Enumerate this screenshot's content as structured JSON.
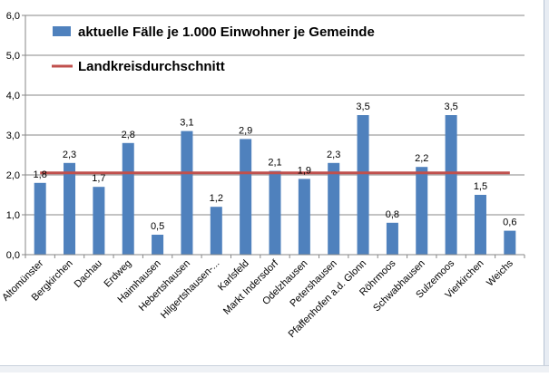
{
  "chart_data": {
    "type": "bar",
    "categories": [
      "Altomünster",
      "Bergkirchen",
      "Dachau",
      "Erdweg",
      "Haimhausen",
      "Hebertshausen",
      "Hilgertshausen-...",
      "Karlsfeld",
      "Markt Indersdorf",
      "Odelzhausen",
      "Petershausen",
      "Pfaffenhofen a.d. Glonn",
      "Röhrmoos",
      "Schwabhausen",
      "Sulzemoos",
      "Vierkirchen",
      "Weichs"
    ],
    "series": [
      {
        "name": "aktuelle Fälle je 1.000 Einwohner je Gemeinde",
        "type": "bar",
        "color": "#4f81bd",
        "values": [
          1.8,
          2.3,
          1.7,
          2.8,
          0.5,
          3.1,
          1.2,
          2.9,
          2.1,
          1.9,
          2.3,
          3.5,
          0.8,
          2.2,
          3.5,
          1.5,
          0.6
        ],
        "data_labels": [
          "1,8",
          "2,3",
          "1,7",
          "2,8",
          "0,5",
          "3,1",
          "1,2",
          "2,9",
          "2,1",
          "1,9",
          "2,3",
          "3,5",
          "0,8",
          "2,2",
          "3,5",
          "1,5",
          "0,6"
        ]
      },
      {
        "name": "Landkreisdurchschnitt",
        "type": "line",
        "color": "#c0504d",
        "value": 2.05
      }
    ],
    "y_ticks": [
      "0,0",
      "1,0",
      "2,0",
      "3,0",
      "4,0",
      "5,0",
      "6,0"
    ],
    "ylim": [
      0,
      6
    ],
    "grid": true,
    "legend_position": "top-left inside plot"
  }
}
